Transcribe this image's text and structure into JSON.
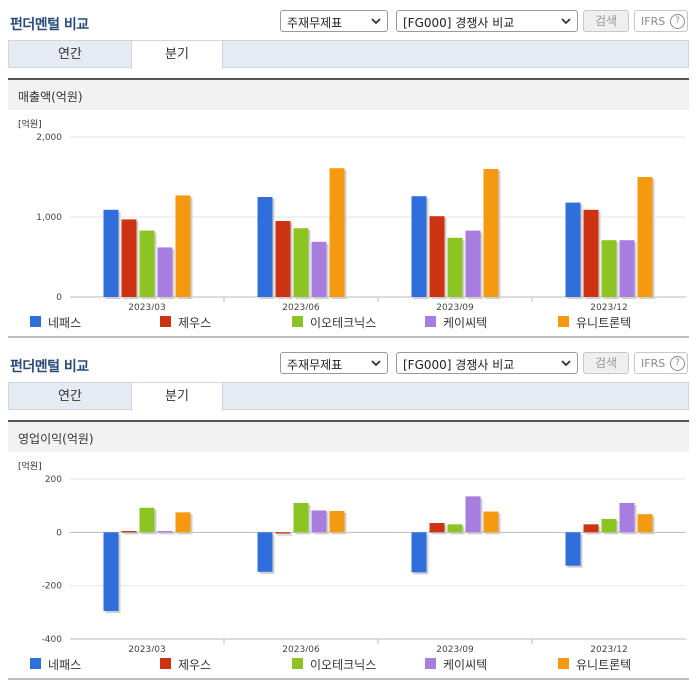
{
  "panels": [
    {
      "title": "펀더멘털 비교",
      "select1": "주재무제표",
      "select2": "[FG000] 경쟁사 비교",
      "search_label": "검색",
      "ifrs_label": "IFRS",
      "ifrs_help": "?",
      "tabs": [
        "연간",
        "분기"
      ],
      "active_tab": "분기",
      "metric": "매출액(억원)",
      "unit": "[억원]"
    },
    {
      "title": "펀더멘털 비교",
      "select1": "주재무제표",
      "select2": "[FG000] 경쟁사 비교",
      "search_label": "검색",
      "ifrs_label": "IFRS",
      "ifrs_help": "?",
      "tabs": [
        "연간",
        "분기"
      ],
      "active_tab": "분기",
      "metric": "영업이익(억원)",
      "unit": "[억원]"
    }
  ],
  "legend": [
    {
      "name": "네패스",
      "color": "#2e6fdb"
    },
    {
      "name": "제우스",
      "color": "#cc3312"
    },
    {
      "name": "이오테크닉스",
      "color": "#8cc424"
    },
    {
      "name": "케이씨텍",
      "color": "#a77ee0"
    },
    {
      "name": "유니트론텍",
      "color": "#f59a10"
    }
  ],
  "chart_data": [
    {
      "type": "bar",
      "ylabel": "[억원]",
      "categories": [
        "2023/03",
        "2023/06",
        "2023/09",
        "2023/12"
      ],
      "ylim": [
        0,
        2000
      ],
      "yticks": [
        0,
        1000,
        2000
      ],
      "ytick_labels": [
        "0",
        "1,000",
        "2,000"
      ],
      "grid": true,
      "series": [
        {
          "name": "네패스",
          "values": [
            1090,
            1250,
            1260,
            1180
          ]
        },
        {
          "name": "제우스",
          "values": [
            970,
            950,
            1010,
            1090
          ]
        },
        {
          "name": "이오테크닉스",
          "values": [
            830,
            860,
            740,
            710
          ]
        },
        {
          "name": "케이씨텍",
          "values": [
            620,
            690,
            830,
            710
          ]
        },
        {
          "name": "유니트론텍",
          "values": [
            1270,
            1610,
            1600,
            1500
          ]
        }
      ]
    },
    {
      "type": "bar",
      "ylabel": "[억원]",
      "categories": [
        "2023/03",
        "2023/06",
        "2023/09",
        "2023/12"
      ],
      "ylim": [
        -400,
        200
      ],
      "yticks": [
        -400,
        -200,
        0,
        200
      ],
      "ytick_labels": [
        "-400",
        "-200",
        "0",
        "200"
      ],
      "grid": true,
      "series": [
        {
          "name": "네패스",
          "values": [
            -295,
            -148,
            -150,
            -125
          ]
        },
        {
          "name": "제우스",
          "values": [
            5,
            -5,
            35,
            30
          ]
        },
        {
          "name": "이오테크닉스",
          "values": [
            92,
            110,
            30,
            50
          ]
        },
        {
          "name": "케이씨텍",
          "values": [
            5,
            82,
            135,
            110
          ]
        },
        {
          "name": "유니트론텍",
          "values": [
            75,
            80,
            78,
            68
          ]
        }
      ]
    }
  ]
}
